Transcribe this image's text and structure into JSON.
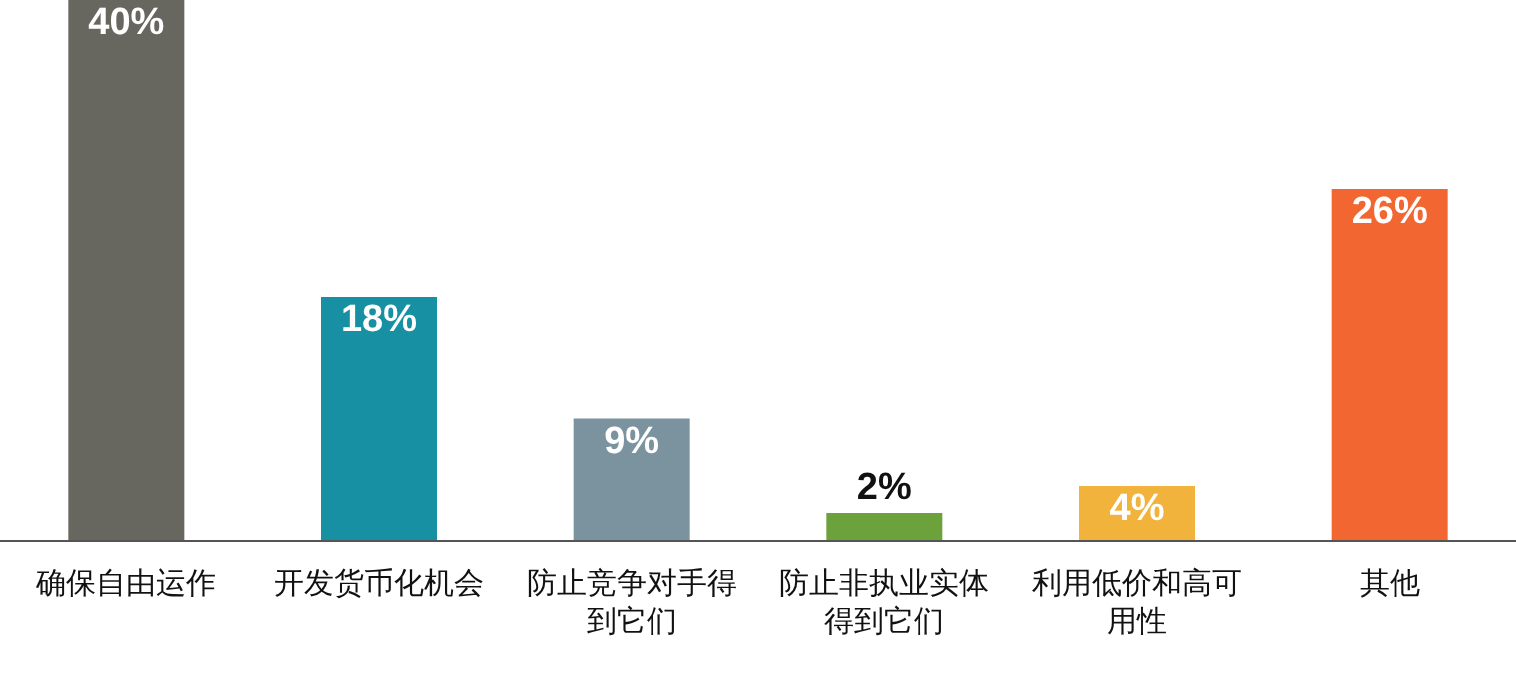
{
  "chart_data": {
    "type": "bar",
    "categories": [
      "确保自由运作",
      "开发货币化机会",
      "防止竞争对手得到它们",
      "防止非执业实体得到它们",
      "利用低价和高可用性",
      "其他"
    ],
    "values": [
      40,
      18,
      9,
      2,
      4,
      26
    ],
    "colors": [
      "#67665f",
      "#1690a2",
      "#7b939e",
      "#6ca23c",
      "#f1b33b",
      "#f26631"
    ],
    "value_labels": [
      "40%",
      "18%",
      "9%",
      "2%",
      "4%",
      "26%"
    ]
  }
}
